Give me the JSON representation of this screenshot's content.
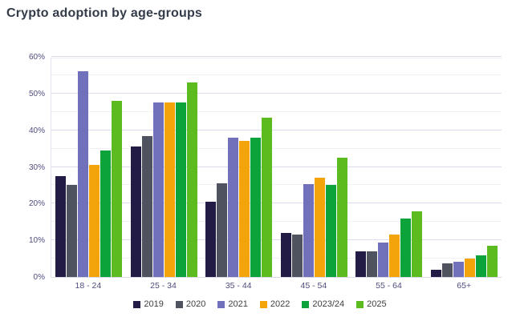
{
  "title": "Crypto adoption by age-groups",
  "chart_data": {
    "type": "bar",
    "title": "Crypto adoption by age-groups",
    "categories": [
      "18 - 24",
      "25 - 34",
      "35 - 44",
      "45 - 54",
      "55 - 64",
      "65+"
    ],
    "series": [
      {
        "name": "2019",
        "color": "#221b45",
        "values": [
          27.5,
          35.5,
          20.5,
          12,
          7,
          2
        ]
      },
      {
        "name": "2020",
        "color": "#4f5360",
        "values": [
          25,
          38.5,
          25.5,
          11.5,
          7,
          3.7
        ]
      },
      {
        "name": "2021",
        "color": "#7170ba",
        "values": [
          56,
          47.5,
          38,
          25.3,
          9.5,
          4.2
        ]
      },
      {
        "name": "2022",
        "color": "#f2a40a",
        "values": [
          30.5,
          47.5,
          37,
          27,
          11.5,
          5
        ]
      },
      {
        "name": "2023/24",
        "color": "#0ba33a",
        "values": [
          34.5,
          47.5,
          38,
          25,
          16,
          6
        ]
      },
      {
        "name": "2025",
        "color": "#5bbb1f",
        "values": [
          48,
          53,
          43.5,
          32.5,
          18,
          8.5
        ]
      }
    ],
    "xlabel": "",
    "ylabel": "",
    "ylim": [
      0,
      60
    ],
    "ytick_labels": [
      "0%",
      "10%",
      "20%",
      "30%",
      "40%",
      "50%",
      "60%"
    ],
    "ytick_step": 10,
    "gridline_step": 5,
    "grid": true,
    "legend_position": "bottom"
  },
  "colors": {
    "background": "#ffffff",
    "title_text": "#333b49",
    "axis_text": "#4e4c7e",
    "legend_text": "#3e3e3e",
    "gridline_major": "#dcdcf0",
    "gridline_minor": "#f0f0f7"
  }
}
